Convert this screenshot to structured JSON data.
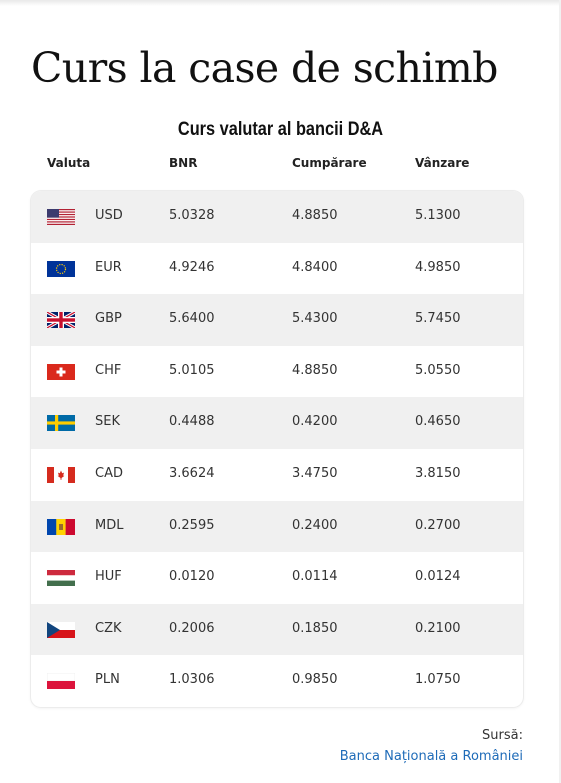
{
  "page": {
    "title": "Curs la case de schimb",
    "subtitle": "Curs valutar al bancii D&A"
  },
  "table": {
    "headers": [
      "Valuta",
      "BNR",
      "Cumpărare",
      "Vânzare"
    ],
    "rows": [
      {
        "flag": "us-flag-icon",
        "code": "USD",
        "bnr": "5.0328",
        "buy": "4.8850",
        "sell": "5.1300"
      },
      {
        "flag": "eu-flag-icon",
        "code": "EUR",
        "bnr": "4.9246",
        "buy": "4.8400",
        "sell": "4.9850"
      },
      {
        "flag": "uk-flag-icon",
        "code": "GBP",
        "bnr": "5.6400",
        "buy": "5.4300",
        "sell": "5.7450"
      },
      {
        "flag": "ch-flag-icon",
        "code": "CHF",
        "bnr": "5.0105",
        "buy": "4.8850",
        "sell": "5.0550"
      },
      {
        "flag": "se-flag-icon",
        "code": "SEK",
        "bnr": "0.4488",
        "buy": "0.4200",
        "sell": "0.4650"
      },
      {
        "flag": "ca-flag-icon",
        "code": "CAD",
        "bnr": "3.6624",
        "buy": "3.4750",
        "sell": "3.8150"
      },
      {
        "flag": "md-flag-icon",
        "code": "MDL",
        "bnr": "0.2595",
        "buy": "0.2400",
        "sell": "0.2700"
      },
      {
        "flag": "hu-flag-icon",
        "code": "HUF",
        "bnr": "0.0120",
        "buy": "0.0114",
        "sell": "0.0124"
      },
      {
        "flag": "cz-flag-icon",
        "code": "CZK",
        "bnr": "0.2006",
        "buy": "0.1850",
        "sell": "0.2100"
      },
      {
        "flag": "pl-flag-icon",
        "code": "PLN",
        "bnr": "1.0306",
        "buy": "0.9850",
        "sell": "1.0750"
      }
    ]
  },
  "source": {
    "label": "Sursă:",
    "link_text": "Banca Națională a României"
  },
  "colors": {
    "row_alt": "#f0f0f0",
    "link": "#1e6bb8"
  }
}
